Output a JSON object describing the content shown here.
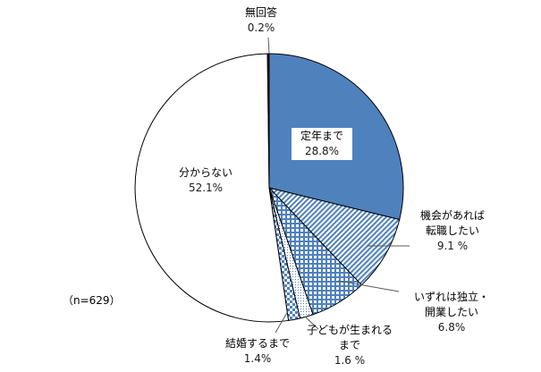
{
  "chart_data": {
    "type": "pie",
    "title": "",
    "note": "（n=629）",
    "start_angle_deg": 0,
    "direction": "clockwise",
    "slices": [
      {
        "label": "定年まで",
        "value": 28.8,
        "value_label": "28.8%",
        "fill": "solid",
        "color": "#4f81bd"
      },
      {
        "label": "機会があれば転職したい",
        "value": 9.1,
        "value_label": "9.1 %",
        "fill": "diagonal-stripes",
        "color": "#4f81bd"
      },
      {
        "label": "いずれは独立・開業したい",
        "value": 6.8,
        "value_label": "6.8%",
        "fill": "grid",
        "color": "#4f81bd"
      },
      {
        "label": "子どもが生まれるまで",
        "value": 1.6,
        "value_label": "1.6 %",
        "fill": "dots",
        "color": "#4f81bd"
      },
      {
        "label": "結婚するまで",
        "value": 1.4,
        "value_label": "1.4%",
        "fill": "checker",
        "color": "#4f81bd"
      },
      {
        "label": "分からない",
        "value": 52.1,
        "value_label": "52.1%",
        "fill": "none",
        "color": "#ffffff"
      },
      {
        "label": "無回答",
        "value": 0.2,
        "value_label": "0.2%",
        "fill": "solid",
        "color": "#000000"
      }
    ]
  },
  "labels": {
    "teinen": {
      "l1": "定年まで",
      "v": "28.8%"
    },
    "tenshoku": {
      "l1": "機会があれば",
      "l2": "転職したい",
      "v": "9.1 %"
    },
    "dokuritsu": {
      "l1": "いずれは独立・",
      "l2": "開業したい",
      "v": "6.8%"
    },
    "kodomo": {
      "l1": "子どもが生まれる",
      "l2": "まで",
      "v": "1.6 %"
    },
    "kekkon": {
      "l1": "結婚するまで",
      "v": "1.4%"
    },
    "wakaranai": {
      "l1": "分からない",
      "v": "52.1%"
    },
    "mukaito": {
      "l1": "無回答",
      "v": "0.2%"
    },
    "n": "（n=629）"
  }
}
